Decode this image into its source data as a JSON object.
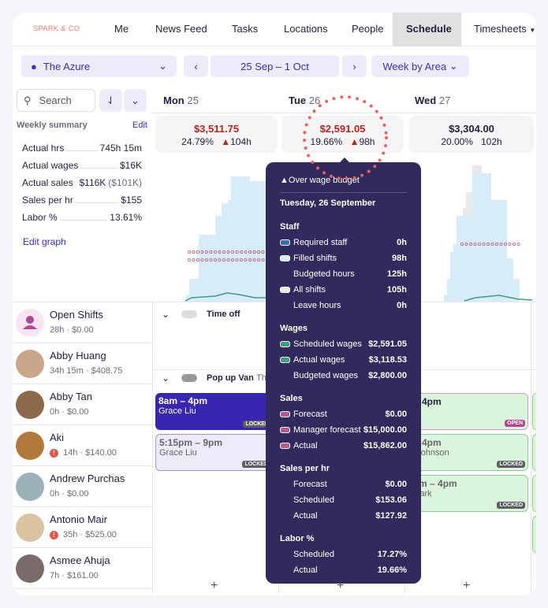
{
  "nav": {
    "brand": "SPARK & CO",
    "items": [
      "Me",
      "News Feed",
      "Tasks",
      "Locations",
      "People",
      "Schedule",
      "Timesheets"
    ],
    "active": "Schedule"
  },
  "toolbar": {
    "location": "The Azure",
    "date_range": "25 Sep – 1 Oct",
    "view": "Week by Area",
    "search_placeholder": "Search"
  },
  "days": [
    {
      "name": "Mon",
      "num": "25",
      "wages": "$3,511.75",
      "pct": "24.79%",
      "hours": "104h",
      "over": true
    },
    {
      "name": "Tue",
      "num": "26",
      "wages": "$2,591.05",
      "pct": "19.66%",
      "hours": "98h",
      "over": true
    },
    {
      "name": "Wed",
      "num": "27",
      "wages": "$3,304.00",
      "pct": "20.00%",
      "hours": "102h",
      "over": false
    }
  ],
  "summary": {
    "title": "Weekly summary",
    "edit": "Edit",
    "rows": [
      {
        "label": "Actual hrs",
        "value": "745h 15m"
      },
      {
        "label": "Actual wages",
        "value": "$16K"
      },
      {
        "label": "Actual sales",
        "value": "$116K",
        "extra": "($101K)"
      },
      {
        "label": "Sales per hr",
        "value": "$155"
      },
      {
        "label": "Labor %",
        "value": "13.61%"
      }
    ],
    "edit_graph": "Edit graph"
  },
  "people": [
    {
      "name": "Open Shifts",
      "meta": "28h · $0.00",
      "warn": false
    },
    {
      "name": "Abby Huang",
      "meta": "34h 15m · $408.75",
      "warn": false
    },
    {
      "name": "Abby Tan",
      "meta": "0h · $0.00",
      "warn": false
    },
    {
      "name": "Aki",
      "meta": "14h · $140.00",
      "warn": true
    },
    {
      "name": "Andrew Purchas",
      "meta": "0h · $0.00",
      "warn": false
    },
    {
      "name": "Antonio Mair",
      "meta": "35h · $525.00",
      "warn": true
    },
    {
      "name": "Asmee Ahuja",
      "meta": "7h · $161.00",
      "warn": false
    }
  ],
  "groups": {
    "time_off": "Time off",
    "popup": "Pop up Van",
    "popup_sub": "The"
  },
  "shifts": [
    {
      "time": "8am – 4pm",
      "name": "Grace Liu",
      "badge": "LOCKED"
    },
    {
      "time": "5:15pm – 9pm",
      "name": "Grace Liu",
      "badge": "LOCKED"
    },
    {
      "time": "m – 4pm",
      "name": "",
      "badge": "OPEN"
    },
    {
      "time": "m – 4pm",
      "name": "vid Johnson",
      "badge": "LOCKED"
    },
    {
      "time": "30am – 4pm",
      "name": "ly Clark",
      "badge": "LOCKED"
    }
  ],
  "add": "+",
  "tooltip": {
    "warning": "Over wage budget",
    "date": "Tuesday, 26 September",
    "sections": [
      {
        "title": "Staff",
        "rows": [
          {
            "label": "Required staff",
            "value": "0h",
            "sw": "#3b6fb5"
          },
          {
            "label": "Filled shifts",
            "value": "98h",
            "sw": "#d8ecf7"
          },
          {
            "label": "Budgeted hours",
            "value": "125h"
          },
          {
            "label": "All shifts",
            "value": "105h",
            "sw": "#e8e8ea"
          },
          {
            "label": "Leave hours",
            "value": "0h"
          }
        ]
      },
      {
        "title": "Wages",
        "rows": [
          {
            "label": "Scheduled wages",
            "value": "$2,591.05",
            "sw": "#3f9b82"
          },
          {
            "label": "Actual wages",
            "value": "$3,118.53",
            "sw": "#3f9b82"
          },
          {
            "label": "Budgeted wages",
            "value": "$2,800.00"
          }
        ]
      },
      {
        "title": "Sales",
        "rows": [
          {
            "label": "Forecast",
            "value": "$0.00",
            "sw": "#b45a92"
          },
          {
            "label": "Manager forecast",
            "value": "$15,000.00",
            "sw": "#b45a92"
          },
          {
            "label": "Actual",
            "value": "$15,862.00",
            "sw": "#b45a92"
          }
        ]
      },
      {
        "title": "Sales per hr",
        "rows": [
          {
            "label": "Forecast",
            "value": "$0.00"
          },
          {
            "label": "Scheduled",
            "value": "$153.06"
          },
          {
            "label": "Actual",
            "value": "$127.92"
          }
        ]
      },
      {
        "title": "Labor %",
        "rows": [
          {
            "label": "Scheduled",
            "value": "17.27%"
          },
          {
            "label": "Actual",
            "value": "19.66%"
          }
        ]
      }
    ]
  },
  "colors": {
    "accent": "#3b2fb5",
    "tooltip_bg": "#312a5c",
    "warning": "#b3261e",
    "highlight": "#f0605a"
  }
}
